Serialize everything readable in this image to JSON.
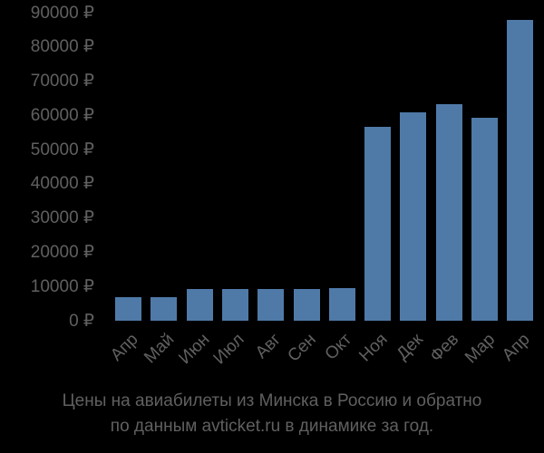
{
  "chart_data": {
    "type": "bar",
    "title": "Цены на авиабилеты из Минска в Россию и обратно по данным avticket.ru в динамике за год.",
    "xlabel": "",
    "ylabel": "",
    "categories": [
      "Апр",
      "Май",
      "Июн",
      "Июл",
      "Авг",
      "Сен",
      "Окт",
      "Ноя",
      "Дек",
      "Фев",
      "Мар",
      "Апр"
    ],
    "values": [
      7000,
      7000,
      9400,
      9400,
      9400,
      9400,
      9700,
      56900,
      60900,
      63500,
      59300,
      87900
    ],
    "ylim": [
      0,
      90000
    ],
    "yticks": [
      "0 ₽",
      "10000 ₽",
      "20000 ₽",
      "30000 ₽",
      "40000 ₽",
      "50000 ₽",
      "60000 ₽",
      "70000 ₽",
      "80000 ₽",
      "90000 ₽"
    ],
    "grid": false,
    "legend": null,
    "bar_color": "#4f7aa8"
  },
  "caption": {
    "line1": "Цены на авиабилеты из Минска в Россию и обратно",
    "line2": "по данным avticket.ru в динамике за год."
  }
}
